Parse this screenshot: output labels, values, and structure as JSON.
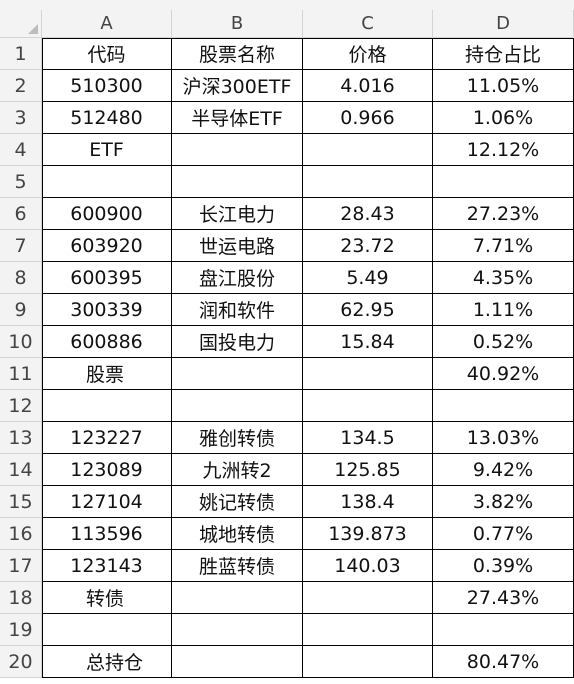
{
  "columns": [
    "A",
    "B",
    "C",
    "D"
  ],
  "row_numbers": [
    "1",
    "2",
    "3",
    "4",
    "5",
    "6",
    "7",
    "8",
    "9",
    "10",
    "11",
    "12",
    "13",
    "14",
    "15",
    "16",
    "17",
    "18",
    "19",
    "20"
  ],
  "rows": [
    {
      "a": "代码",
      "b": "股票名称",
      "c": "价格",
      "d": "持仓占比",
      "a_align": "center"
    },
    {
      "a": "510300",
      "b": "沪深300ETF",
      "c": "4.016",
      "d": "11.05%",
      "a_align": "center"
    },
    {
      "a": "512480",
      "b": "半导体ETF",
      "c": "0.966",
      "d": "1.06%",
      "a_align": "center"
    },
    {
      "a": "ETF",
      "b": "",
      "c": "",
      "d": "12.12%",
      "a_align": "center"
    },
    {
      "a": "",
      "b": "",
      "c": "",
      "d": "",
      "a_align": "center"
    },
    {
      "a": "600900",
      "b": "长江电力",
      "c": "28.43",
      "d": "27.23%",
      "a_align": "center"
    },
    {
      "a": "603920",
      "b": "世运电路",
      "c": "23.72",
      "d": "7.71%",
      "a_align": "center"
    },
    {
      "a": "600395",
      "b": "盘江股份",
      "c": "5.49",
      "d": "4.35%",
      "a_align": "center"
    },
    {
      "a": "300339",
      "b": "润和软件",
      "c": "62.95",
      "d": "1.11%",
      "a_align": "center"
    },
    {
      "a": "600886",
      "b": "国投电力",
      "c": "15.84",
      "d": "0.52%",
      "a_align": "center"
    },
    {
      "a": "股票",
      "b": "",
      "c": "",
      "d": "40.92%",
      "a_align": "left"
    },
    {
      "a": "",
      "b": "",
      "c": "",
      "d": "",
      "a_align": "center"
    },
    {
      "a": "123227",
      "b": "雅创转债",
      "c": "134.5",
      "d": "13.03%",
      "a_align": "center"
    },
    {
      "a": "123089",
      "b": "九洲转2",
      "c": "125.85",
      "d": "9.42%",
      "a_align": "center"
    },
    {
      "a": "127104",
      "b": "姚记转债",
      "c": "138.4",
      "d": "3.82%",
      "a_align": "center"
    },
    {
      "a": "113596",
      "b": "城地转债",
      "c": "139.873",
      "d": "0.77%",
      "a_align": "center"
    },
    {
      "a": "123143",
      "b": "胜蓝转债",
      "c": "140.03",
      "d": "0.39%",
      "a_align": "center"
    },
    {
      "a": "转债",
      "b": "",
      "c": "",
      "d": "27.43%",
      "a_align": "left"
    },
    {
      "a": "",
      "b": "",
      "c": "",
      "d": "",
      "a_align": "center"
    },
    {
      "a": "总持仓",
      "b": "",
      "c": "",
      "d": "80.47%",
      "a_align": "left"
    }
  ],
  "colors": {
    "header_bg": "#f3f3f3",
    "header_text": "#444444",
    "grid_line": "#000000",
    "cell_text": "#111111"
  }
}
